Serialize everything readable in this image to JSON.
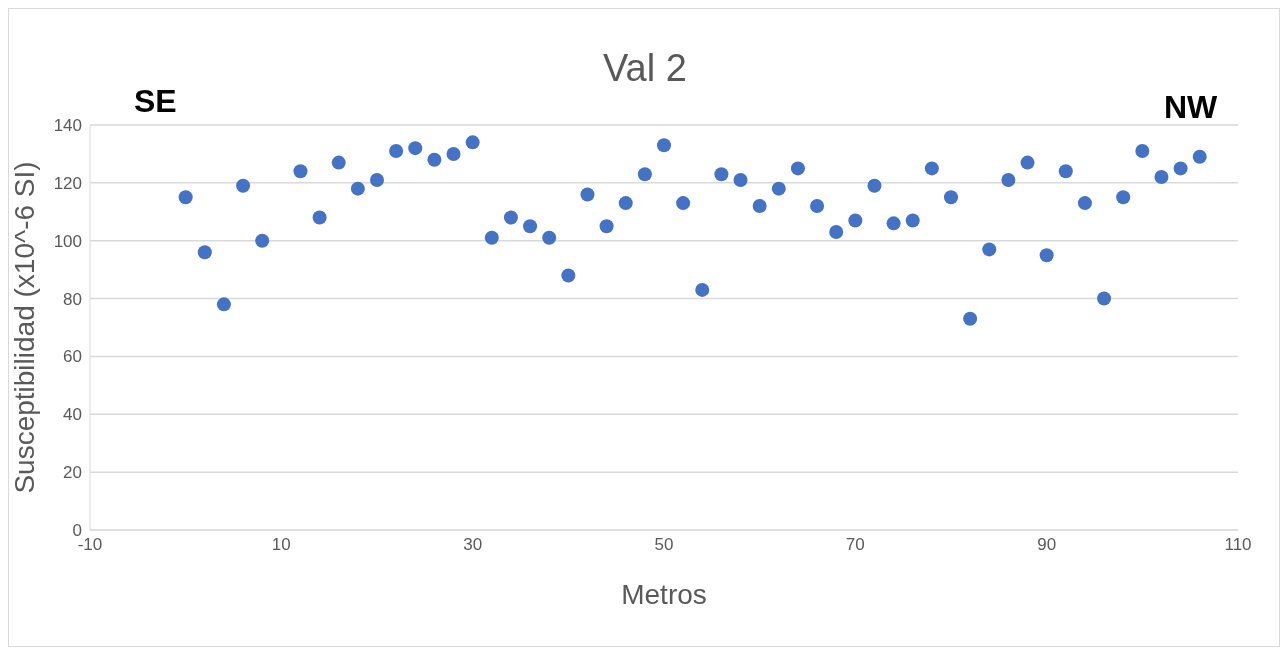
{
  "chart_data": {
    "type": "scatter",
    "title": "Val 2",
    "xlabel": "Metros",
    "ylabel": "Susceptibilidad (x10^-6 SI)",
    "annotations": [
      "SE",
      "NW"
    ],
    "x": [
      0,
      2,
      4,
      6,
      8,
      12,
      14,
      16,
      18,
      20,
      22,
      24,
      26,
      28,
      30,
      32,
      34,
      36,
      38,
      40,
      42,
      44,
      46,
      48,
      50,
      52,
      54,
      56,
      58,
      60,
      62,
      64,
      66,
      68,
      70,
      72,
      74,
      76,
      78,
      80,
      82,
      84,
      86,
      88,
      90,
      92,
      94,
      96,
      98,
      100,
      102,
      104,
      106
    ],
    "series": [
      {
        "color": "#4472c4",
        "values": [
          115,
          96,
          78,
          119,
          100,
          124,
          108,
          127,
          118,
          121,
          131,
          132,
          128,
          130,
          134,
          101,
          108,
          105,
          101,
          88,
          116,
          105,
          113,
          123,
          133,
          113,
          83,
          123,
          121,
          112,
          118,
          125,
          112,
          103,
          107,
          119,
          106,
          107,
          125,
          115,
          73,
          97,
          121,
          127,
          95,
          124,
          113,
          80,
          115,
          131,
          122,
          125,
          129
        ]
      }
    ],
    "xlim": [
      -10,
      110
    ],
    "xticks": [
      -10,
      10,
      30,
      50,
      70,
      90,
      110
    ],
    "ylim": [
      0,
      140
    ],
    "yticks": [
      0,
      20,
      40,
      60,
      80,
      100,
      120,
      140
    ],
    "grid": "y",
    "marker": "circle"
  }
}
